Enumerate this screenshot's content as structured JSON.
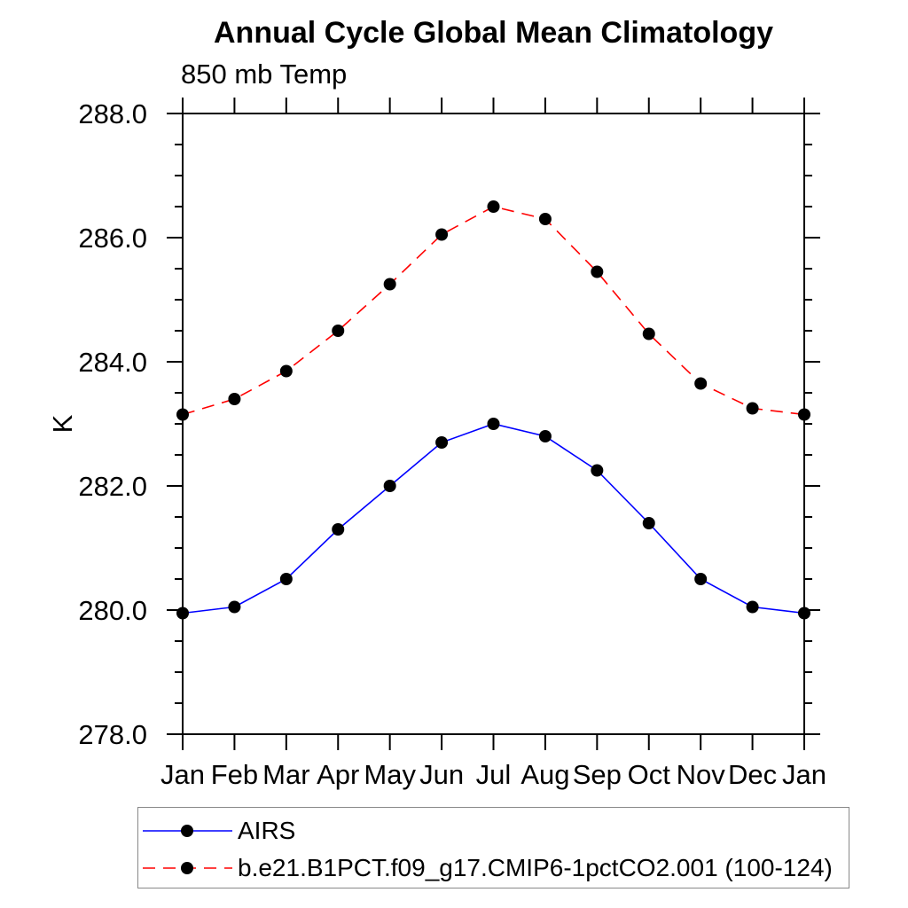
{
  "chart_data": {
    "type": "line",
    "title": "Annual Cycle Global Mean Climatology",
    "subtitle": "850 mb Temp",
    "ylabel": "K",
    "x_categories": [
      "Jan",
      "Feb",
      "Mar",
      "Apr",
      "May",
      "Jun",
      "Jul",
      "Aug",
      "Sep",
      "Oct",
      "Nov",
      "Dec",
      "Jan"
    ],
    "ylim": [
      278.0,
      288.0
    ],
    "ytick_interval": 2.0,
    "yminor_interval": 0.5,
    "ytick_values": [
      278.0,
      280.0,
      282.0,
      284.0,
      286.0,
      288.0
    ],
    "ytick_labels": [
      "278.0",
      "280.0",
      "282.0",
      "284.0",
      "286.0",
      "288.0"
    ],
    "grid": false,
    "legend_position": "bottom-left-box",
    "series": [
      {
        "name": "AIRS",
        "color": "#0000ff",
        "style": "solid",
        "marker": "filled-circle",
        "marker_color": "#000000",
        "values": [
          279.95,
          280.05,
          280.5,
          281.3,
          282.0,
          282.7,
          283.0,
          282.8,
          282.25,
          281.4,
          280.5,
          280.05,
          279.95
        ]
      },
      {
        "name": "b.e21.B1PCT.f09_g17.CMIP6-1pctCO2.001 (100-124)",
        "color": "#ff0000",
        "style": "dashed",
        "marker": "filled-circle",
        "marker_color": "#000000",
        "values": [
          283.15,
          283.4,
          283.85,
          284.5,
          285.25,
          286.05,
          286.5,
          286.3,
          285.45,
          284.45,
          283.65,
          283.25,
          283.15
        ]
      }
    ],
    "axis_color": "#000000"
  }
}
